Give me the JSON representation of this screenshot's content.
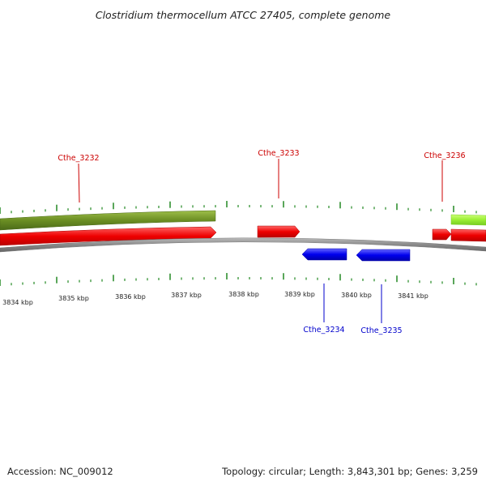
{
  "title": "Clostridium thermocellum ATCC 27405, complete genome",
  "footer": {
    "accession": "Accession: NC_009012",
    "topology": "Topology: circular; Length: 3,843,301 bp; Genes: 3,259"
  },
  "colors": {
    "forward_gene": "#ff0000",
    "reverse_gene": "#0000ff",
    "forward_label": "#cc0000",
    "reverse_label": "#0000cc",
    "tick": "#228822",
    "backbone": "#888888",
    "feature_olive": "#6b8e23",
    "feature_lime": "#99ee33"
  },
  "map": {
    "kbp_labels": [
      "3834 kbp",
      "3835 kbp",
      "3836 kbp",
      "3837 kbp",
      "3838 kbp",
      "3839 kbp",
      "3840 kbp",
      "3841 kbp"
    ],
    "genes": [
      {
        "name": "Cthe_3232",
        "strand": "forward"
      },
      {
        "name": "Cthe_3233",
        "strand": "forward"
      },
      {
        "name": "Cthe_3236",
        "strand": "forward"
      },
      {
        "name": "Cthe_3234",
        "strand": "reverse"
      },
      {
        "name": "Cthe_3235",
        "strand": "reverse"
      }
    ]
  }
}
